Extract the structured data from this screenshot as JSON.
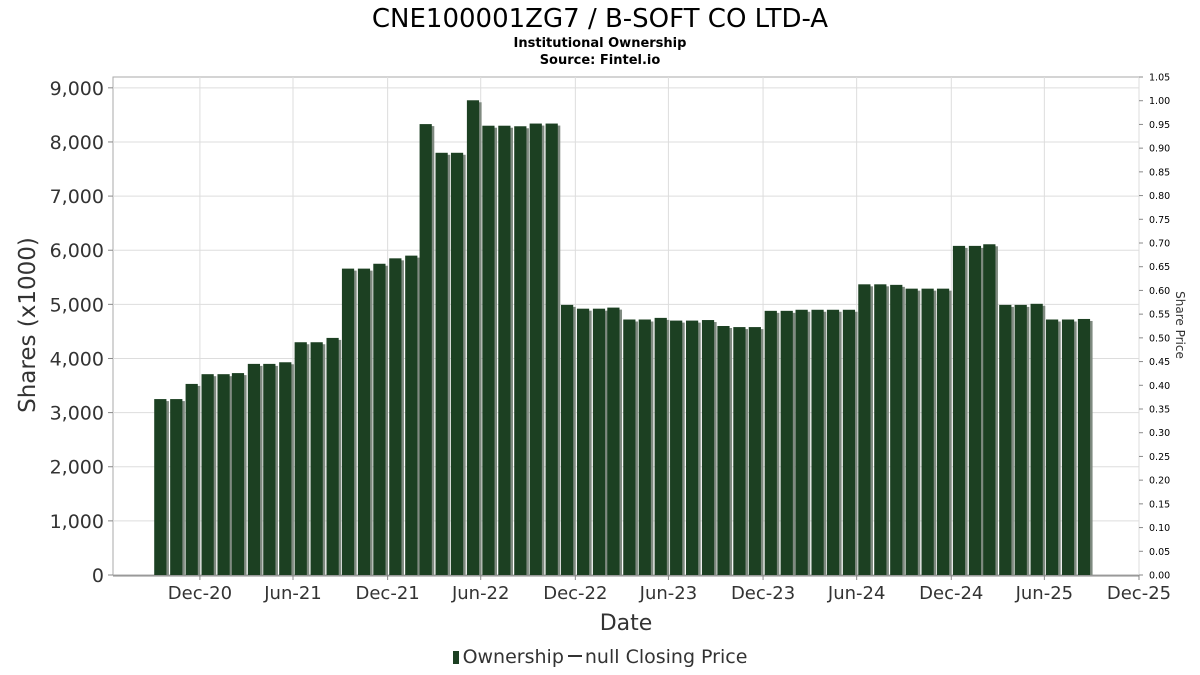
{
  "chart_data": {
    "type": "bar",
    "title": "CNE100001ZG7 / B-SOFT CO LTD-A",
    "subtitle_lines": [
      "Institutional Ownership",
      "Source: Fintel.io"
    ],
    "xlabel": "Date",
    "ylabel": "Shares (x1000)",
    "y2label": "Share Price",
    "ylim": [
      0,
      9200
    ],
    "y2lim": [
      0,
      1.05
    ],
    "yticks": [
      0,
      1000,
      2000,
      3000,
      4000,
      5000,
      6000,
      7000,
      8000,
      9000
    ],
    "ytick_labels": [
      "0",
      "1,000",
      "2,000",
      "3,000",
      "4,000",
      "5,000",
      "6,000",
      "7,000",
      "8,000",
      "9,000"
    ],
    "y2ticks": [
      0,
      0.05,
      0.1,
      0.15,
      0.2,
      0.25,
      0.3,
      0.35,
      0.4,
      0.45,
      0.5,
      0.55,
      0.6,
      0.65,
      0.7,
      0.75,
      0.8,
      0.85,
      0.9,
      0.95,
      1.0,
      1.05
    ],
    "y2tick_labels": [
      "0.00",
      "0.05",
      "0.10",
      "0.15",
      "0.20",
      "0.25",
      "0.30",
      "0.35",
      "0.40",
      "0.45",
      "0.50",
      "0.55",
      "0.60",
      "0.65",
      "0.70",
      "0.75",
      "0.80",
      "0.85",
      "0.90",
      "0.95",
      "1.00",
      "1.05"
    ],
    "xlim": [
      "2020-07-15",
      "2025-12-31"
    ],
    "xticks": [
      "2020-12-31",
      "2021-06-30",
      "2021-12-31",
      "2022-06-30",
      "2022-12-31",
      "2023-06-30",
      "2023-12-31",
      "2024-06-30",
      "2024-12-31",
      "2025-06-30",
      "2025-12-31"
    ],
    "xtick_labels": [
      "Dec-20",
      "Jun-21",
      "Dec-21",
      "Jun-22",
      "Dec-22",
      "Jun-23",
      "Dec-23",
      "Jun-24",
      "Dec-24",
      "Jun-25",
      "Dec-25"
    ],
    "grid": true,
    "legend_position": "bottom",
    "colors": {
      "bar": "#1c4022",
      "bar_shadow": "#7f8a80",
      "grid": "#dddddd",
      "axis": "#888888",
      "text": "#333333"
    },
    "series": [
      {
        "name": "Ownership",
        "x": [
          "2020-10-15",
          "2020-11-15",
          "2020-12-15",
          "2021-01-15",
          "2021-02-15",
          "2021-03-15",
          "2021-04-15",
          "2021-05-15",
          "2021-06-15",
          "2021-07-15",
          "2021-08-15",
          "2021-09-15",
          "2021-10-15",
          "2021-11-15",
          "2021-12-15",
          "2022-01-15",
          "2022-02-15",
          "2022-03-15",
          "2022-04-15",
          "2022-05-15",
          "2022-06-15",
          "2022-07-15",
          "2022-08-15",
          "2022-09-15",
          "2022-10-15",
          "2022-11-15",
          "2022-12-15",
          "2023-01-15",
          "2023-02-15",
          "2023-03-15",
          "2023-04-15",
          "2023-05-15",
          "2023-06-15",
          "2023-07-15",
          "2023-08-15",
          "2023-09-15",
          "2023-10-15",
          "2023-11-15",
          "2023-12-15",
          "2024-01-15",
          "2024-02-15",
          "2024-03-15",
          "2024-04-15",
          "2024-05-15",
          "2024-06-15",
          "2024-07-15",
          "2024-08-15",
          "2024-09-15",
          "2024-10-15",
          "2024-11-15",
          "2024-12-15",
          "2025-01-15",
          "2025-02-15",
          "2025-03-15",
          "2025-04-15",
          "2025-05-15",
          "2025-06-15",
          "2025-07-15",
          "2025-08-15",
          "2025-09-15"
        ],
        "values": [
          3250,
          3250,
          3530,
          3710,
          3710,
          3730,
          3900,
          3900,
          3930,
          4300,
          4300,
          4380,
          5660,
          5660,
          5750,
          5850,
          5900,
          8330,
          7800,
          7800,
          8770,
          8300,
          8300,
          8290,
          8340,
          8340,
          4990,
          4920,
          4920,
          4940,
          4720,
          4720,
          4750,
          4700,
          4700,
          4710,
          4600,
          4580,
          4580,
          4880,
          4880,
          4900,
          4900,
          4900,
          4900,
          5370,
          5370,
          5360,
          5290,
          5290,
          5290,
          6080,
          6080,
          6110,
          4990,
          4990,
          5010,
          4720,
          4720,
          4730
        ]
      },
      {
        "name": "null Closing Price",
        "values": []
      }
    ]
  }
}
